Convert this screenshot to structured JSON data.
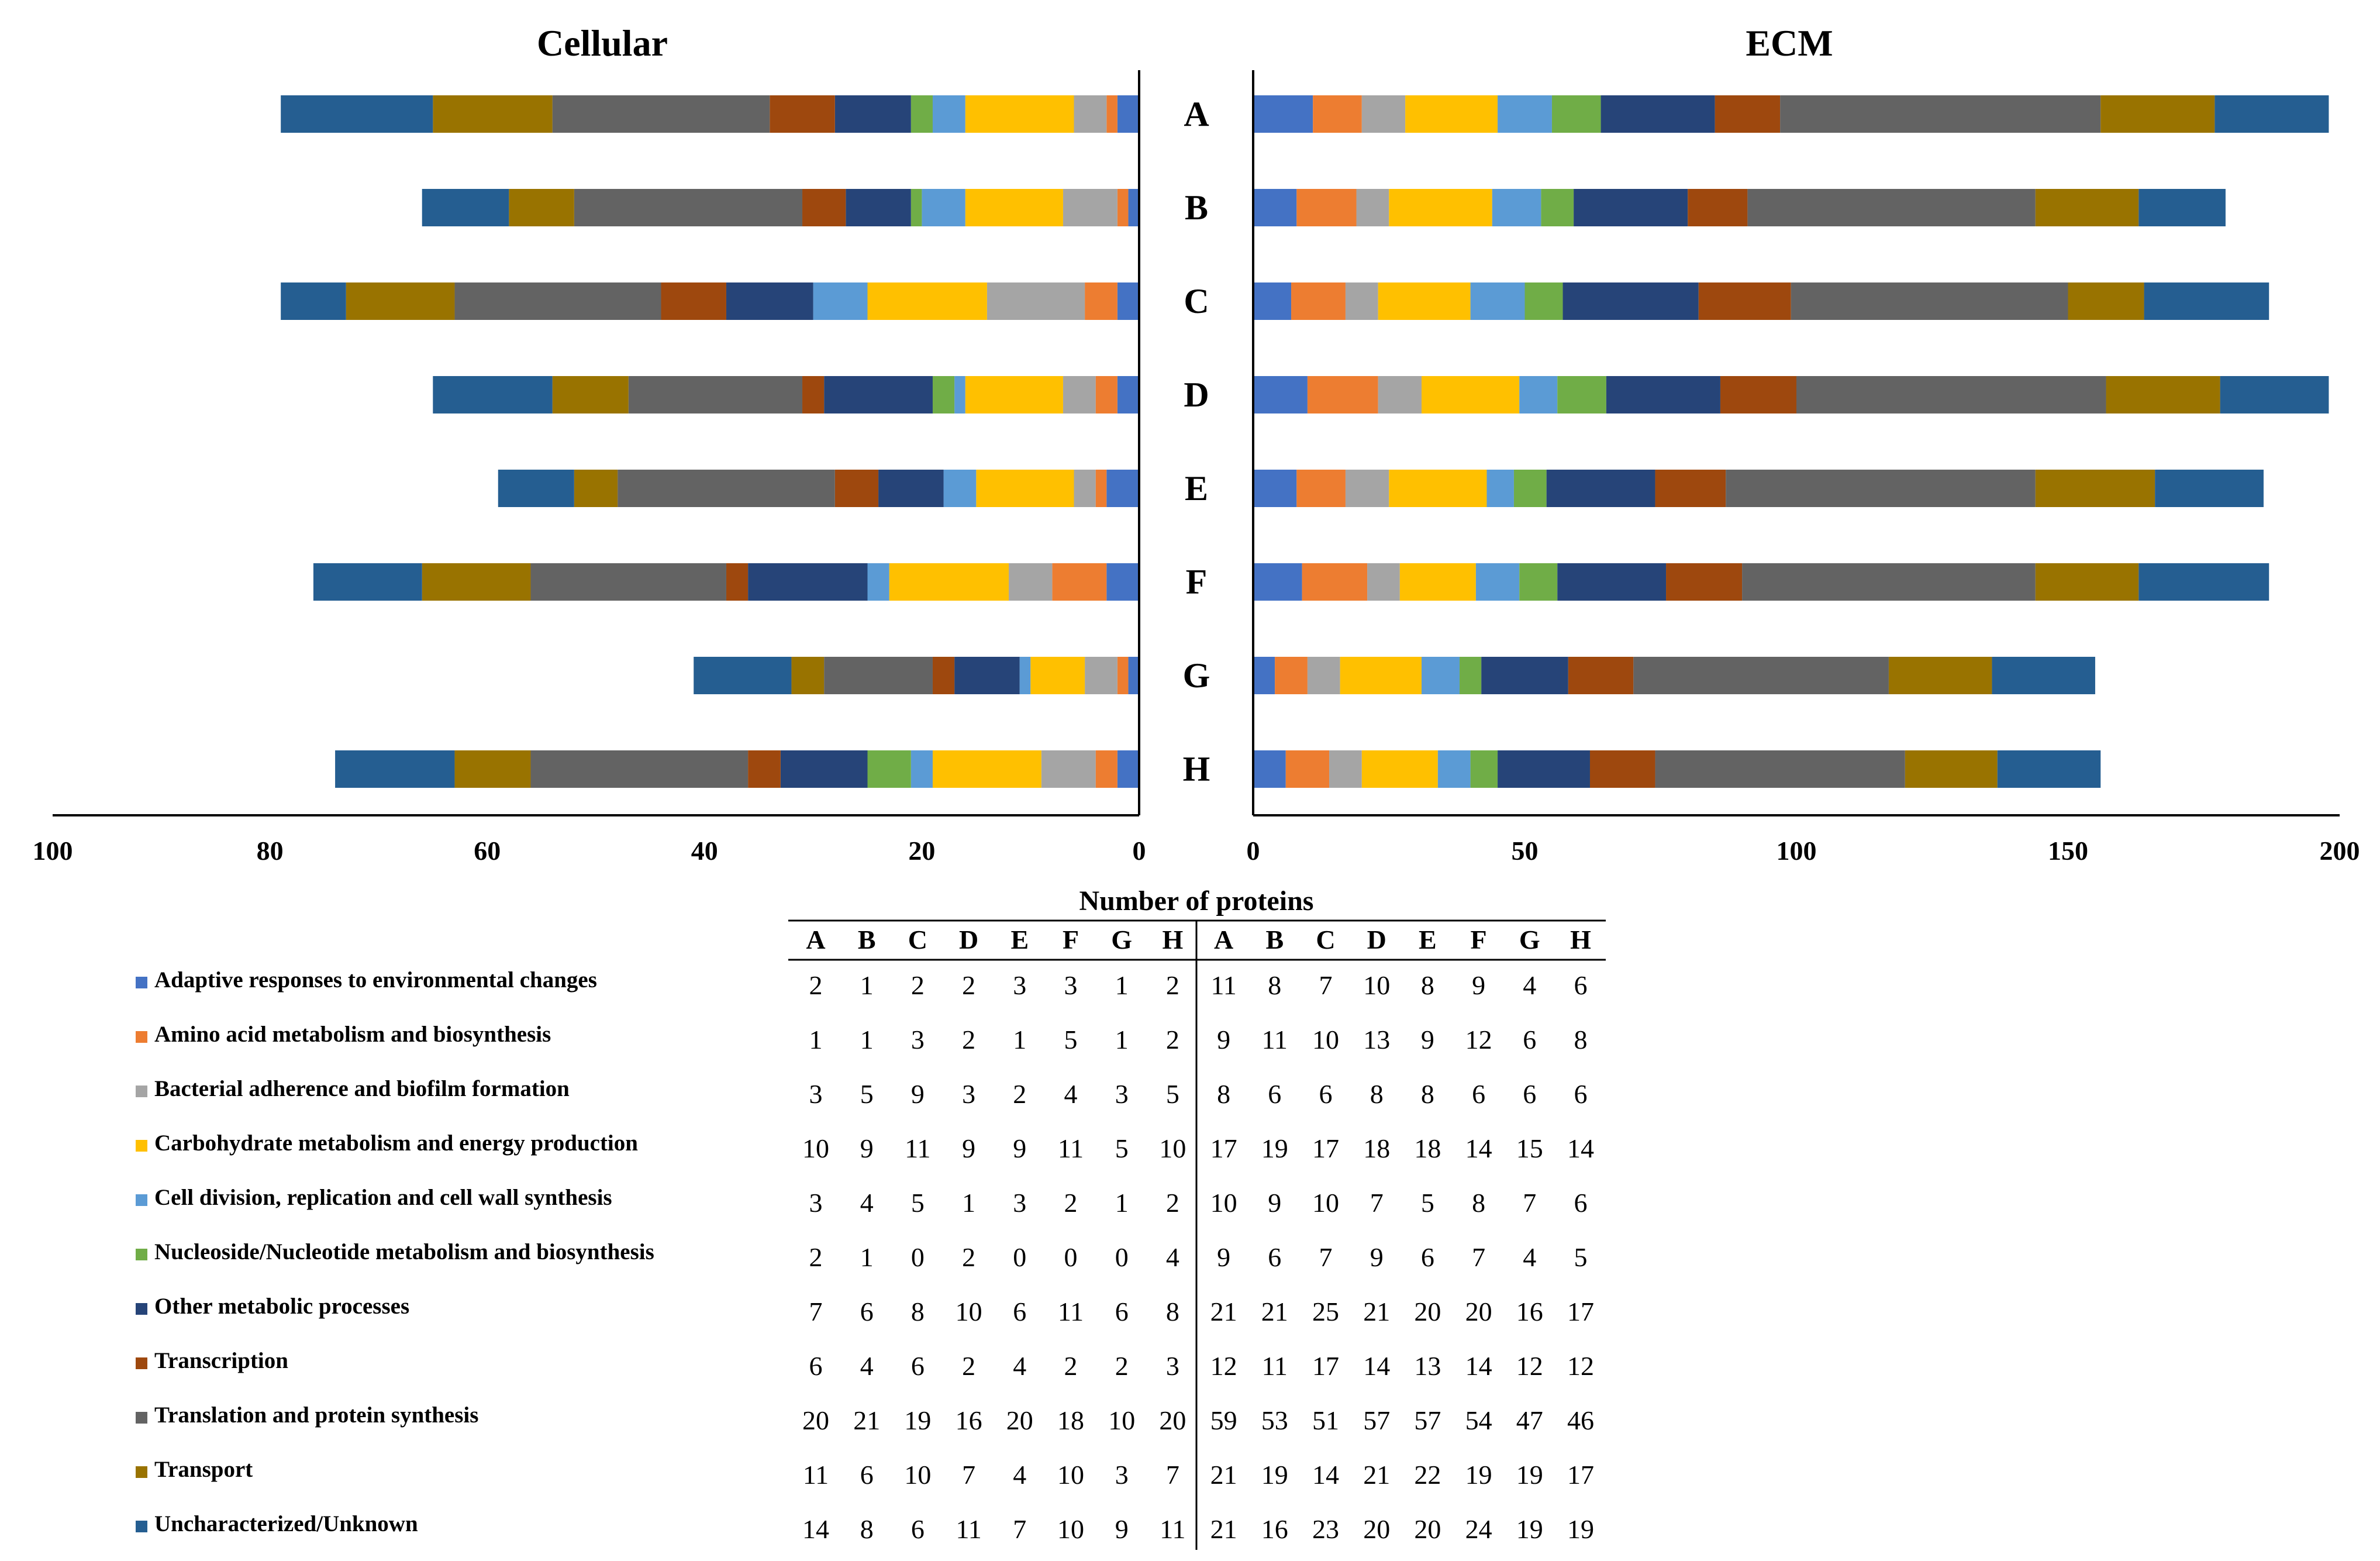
{
  "chart_data": {
    "type": "bar",
    "orientation": "horizontal-stacked",
    "x_axis_title": "Number of proteins",
    "samples": [
      "A",
      "B",
      "C",
      "D",
      "E",
      "F",
      "G",
      "H"
    ],
    "categories": [
      {
        "name": "Adaptive responses to environmental changes",
        "color": "#4472C4"
      },
      {
        "name": "Amino acid metabolism and biosynthesis",
        "color": "#ED7D31"
      },
      {
        "name": "Bacterial adherence and biofilm formation",
        "color": "#A5A5A5"
      },
      {
        "name": "Carbohydrate metabolism and energy production",
        "color": "#FFC000"
      },
      {
        "name": "Cell division, replication and cell wall synthesis",
        "color": "#5B9BD5"
      },
      {
        "name": "Nucleoside/Nucleotide metabolism and biosynthesis",
        "color": "#70AD47"
      },
      {
        "name": "Other metabolic processes",
        "color": "#264478"
      },
      {
        "name": "Transcription",
        "color": "#9E480E"
      },
      {
        "name": "Translation and protein synthesis",
        "color": "#636363"
      },
      {
        "name": "Transport",
        "color": "#997300"
      },
      {
        "name": "Uncharacterized/Unknown",
        "color": "#255E91"
      }
    ],
    "panels": [
      {
        "title": "Cellular",
        "direction": "right-to-left",
        "xlim": [
          0,
          100
        ],
        "ticks": [
          100,
          80,
          60,
          40,
          20,
          0
        ],
        "values": [
          [
            2,
            1,
            2,
            2,
            3,
            3,
            1,
            2
          ],
          [
            1,
            1,
            3,
            2,
            1,
            5,
            1,
            2
          ],
          [
            3,
            5,
            9,
            3,
            2,
            4,
            3,
            5
          ],
          [
            10,
            9,
            11,
            9,
            9,
            11,
            5,
            10
          ],
          [
            3,
            4,
            5,
            1,
            3,
            2,
            1,
            2
          ],
          [
            2,
            1,
            0,
            2,
            0,
            0,
            0,
            4
          ],
          [
            7,
            6,
            8,
            10,
            6,
            11,
            6,
            8
          ],
          [
            6,
            4,
            6,
            2,
            4,
            2,
            2,
            3
          ],
          [
            20,
            21,
            19,
            16,
            20,
            18,
            10,
            20
          ],
          [
            11,
            6,
            10,
            7,
            4,
            10,
            3,
            7
          ],
          [
            14,
            8,
            6,
            11,
            7,
            10,
            9,
            11
          ]
        ]
      },
      {
        "title": "ECM",
        "direction": "left-to-right",
        "xlim": [
          0,
          200
        ],
        "ticks": [
          0,
          50,
          100,
          150,
          200
        ],
        "values": [
          [
            11,
            8,
            7,
            10,
            8,
            9,
            4,
            6
          ],
          [
            9,
            11,
            10,
            13,
            9,
            12,
            6,
            8
          ],
          [
            8,
            6,
            6,
            8,
            8,
            6,
            6,
            6
          ],
          [
            17,
            19,
            17,
            18,
            18,
            14,
            15,
            14
          ],
          [
            10,
            9,
            10,
            7,
            5,
            8,
            7,
            6
          ],
          [
            9,
            6,
            7,
            9,
            6,
            7,
            4,
            5
          ],
          [
            21,
            21,
            25,
            21,
            20,
            20,
            16,
            17
          ],
          [
            12,
            11,
            17,
            14,
            13,
            14,
            12,
            12
          ],
          [
            59,
            53,
            51,
            57,
            57,
            54,
            47,
            46
          ],
          [
            21,
            19,
            14,
            21,
            22,
            19,
            19,
            17
          ],
          [
            21,
            16,
            23,
            20,
            20,
            24,
            19,
            19
          ]
        ]
      }
    ]
  }
}
